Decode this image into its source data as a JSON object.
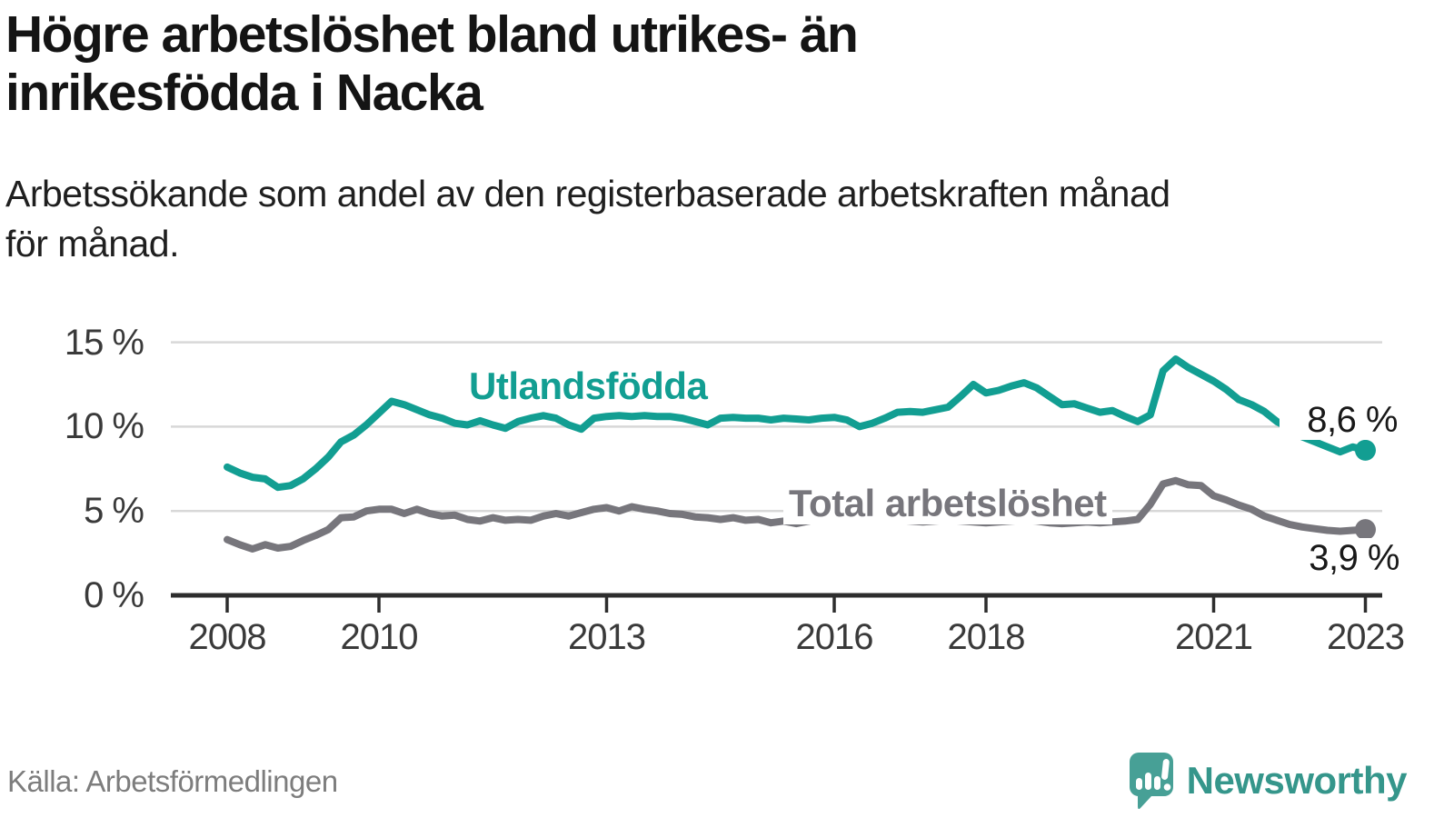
{
  "header": {
    "title_line1": "Högre arbetslöshet bland utrikes- än",
    "title_line2": "inrikesfödda i Nacka",
    "subtitle_line1": "Arbetssökande som andel av den registerbaserade arbetskraften månad",
    "subtitle_line2": "för månad."
  },
  "chart_data": {
    "type": "line",
    "title": "Högre arbetslöshet bland utrikes- än inrikesfödda i Nacka",
    "subtitle": "Arbetssökande som andel av den registerbaserade arbetskraften månad för månad.",
    "unit": "%",
    "grid": true,
    "legend_position": "inline-labels",
    "style": {
      "grid_color": "#D8D8D8",
      "axis_color": "#2D2D2D",
      "teal": "#129E92",
      "gray": "#77767C"
    },
    "y_axis": {
      "range": [
        0,
        15.5
      ],
      "ticks": [
        {
          "label": "15 %",
          "value": 15
        },
        {
          "label": "10 %",
          "value": 10
        },
        {
          "label": "5 %",
          "value": 5
        },
        {
          "label": "0 %",
          "value": 0
        }
      ]
    },
    "x_axis": {
      "range": [
        2008.0,
        2023.25
      ],
      "ticks": [
        {
          "label": "2008",
          "year": 2008
        },
        {
          "label": "2010",
          "year": 2010
        },
        {
          "label": "2013",
          "year": 2013
        },
        {
          "label": "2016",
          "year": 2016
        },
        {
          "label": "2018",
          "year": 2018
        },
        {
          "label": "2021",
          "year": 2021
        },
        {
          "label": "2023",
          "year": 2023
        }
      ]
    },
    "series": [
      {
        "id": "utlandsfodda",
        "name": "Utlandsfödda",
        "color": "#129E92",
        "end_label": "8,6 %",
        "end_value": 8.6,
        "points": [
          [
            2008.0,
            7.6
          ],
          [
            2008.167,
            7.25
          ],
          [
            2008.333,
            7.0
          ],
          [
            2008.5,
            6.9
          ],
          [
            2008.667,
            6.4
          ],
          [
            2008.833,
            6.5
          ],
          [
            2009.0,
            6.9
          ],
          [
            2009.167,
            7.5
          ],
          [
            2009.333,
            8.2
          ],
          [
            2009.5,
            9.1
          ],
          [
            2009.667,
            9.5
          ],
          [
            2009.833,
            10.1
          ],
          [
            2010.0,
            10.8
          ],
          [
            2010.167,
            11.5
          ],
          [
            2010.333,
            11.3
          ],
          [
            2010.5,
            11.0
          ],
          [
            2010.667,
            10.7
          ],
          [
            2010.833,
            10.5
          ],
          [
            2011.0,
            10.2
          ],
          [
            2011.167,
            10.1
          ],
          [
            2011.333,
            10.35
          ],
          [
            2011.5,
            10.1
          ],
          [
            2011.667,
            9.9
          ],
          [
            2011.833,
            10.3
          ],
          [
            2012.0,
            10.5
          ],
          [
            2012.167,
            10.65
          ],
          [
            2012.333,
            10.5
          ],
          [
            2012.5,
            10.1
          ],
          [
            2012.667,
            9.85
          ],
          [
            2012.833,
            10.5
          ],
          [
            2013.0,
            10.6
          ],
          [
            2013.167,
            10.65
          ],
          [
            2013.333,
            10.6
          ],
          [
            2013.5,
            10.65
          ],
          [
            2013.667,
            10.6
          ],
          [
            2013.833,
            10.6
          ],
          [
            2014.0,
            10.5
          ],
          [
            2014.167,
            10.3
          ],
          [
            2014.333,
            10.1
          ],
          [
            2014.5,
            10.5
          ],
          [
            2014.667,
            10.55
          ],
          [
            2014.833,
            10.5
          ],
          [
            2015.0,
            10.5
          ],
          [
            2015.167,
            10.4
          ],
          [
            2015.333,
            10.5
          ],
          [
            2015.5,
            10.45
          ],
          [
            2015.667,
            10.4
          ],
          [
            2015.833,
            10.5
          ],
          [
            2016.0,
            10.55
          ],
          [
            2016.167,
            10.4
          ],
          [
            2016.333,
            10.0
          ],
          [
            2016.5,
            10.2
          ],
          [
            2016.667,
            10.5
          ],
          [
            2016.833,
            10.85
          ],
          [
            2017.0,
            10.9
          ],
          [
            2017.167,
            10.85
          ],
          [
            2017.333,
            11.0
          ],
          [
            2017.5,
            11.15
          ],
          [
            2017.667,
            11.8
          ],
          [
            2017.833,
            12.5
          ],
          [
            2018.0,
            12.0
          ],
          [
            2018.167,
            12.15
          ],
          [
            2018.333,
            12.4
          ],
          [
            2018.5,
            12.6
          ],
          [
            2018.667,
            12.3
          ],
          [
            2018.833,
            11.8
          ],
          [
            2019.0,
            11.3
          ],
          [
            2019.167,
            11.35
          ],
          [
            2019.333,
            11.1
          ],
          [
            2019.5,
            10.85
          ],
          [
            2019.667,
            10.95
          ],
          [
            2019.833,
            10.6
          ],
          [
            2020.0,
            10.3
          ],
          [
            2020.167,
            10.7
          ],
          [
            2020.333,
            13.3
          ],
          [
            2020.5,
            14.0
          ],
          [
            2020.667,
            13.5
          ],
          [
            2020.833,
            13.1
          ],
          [
            2021.0,
            12.7
          ],
          [
            2021.167,
            12.2
          ],
          [
            2021.333,
            11.6
          ],
          [
            2021.5,
            11.3
          ],
          [
            2021.667,
            10.9
          ],
          [
            2021.833,
            10.3
          ],
          [
            2022.0,
            9.9
          ],
          [
            2022.167,
            9.4
          ],
          [
            2022.333,
            9.1
          ],
          [
            2022.5,
            8.8
          ],
          [
            2022.667,
            8.5
          ],
          [
            2022.833,
            8.8
          ],
          [
            2023.0,
            8.6
          ]
        ]
      },
      {
        "id": "total",
        "name": "Total arbetslöshet",
        "color": "#77767C",
        "end_label": "3,9 %",
        "end_value": 3.9,
        "points": [
          [
            2008.0,
            3.3
          ],
          [
            2008.167,
            3.0
          ],
          [
            2008.333,
            2.75
          ],
          [
            2008.5,
            3.0
          ],
          [
            2008.667,
            2.8
          ],
          [
            2008.833,
            2.9
          ],
          [
            2009.0,
            3.25
          ],
          [
            2009.167,
            3.55
          ],
          [
            2009.333,
            3.9
          ],
          [
            2009.5,
            4.6
          ],
          [
            2009.667,
            4.65
          ],
          [
            2009.833,
            5.0
          ],
          [
            2010.0,
            5.1
          ],
          [
            2010.167,
            5.1
          ],
          [
            2010.333,
            4.85
          ],
          [
            2010.5,
            5.1
          ],
          [
            2010.667,
            4.85
          ],
          [
            2010.833,
            4.7
          ],
          [
            2011.0,
            4.75
          ],
          [
            2011.167,
            4.5
          ],
          [
            2011.333,
            4.4
          ],
          [
            2011.5,
            4.6
          ],
          [
            2011.667,
            4.45
          ],
          [
            2011.833,
            4.5
          ],
          [
            2012.0,
            4.45
          ],
          [
            2012.167,
            4.7
          ],
          [
            2012.333,
            4.85
          ],
          [
            2012.5,
            4.7
          ],
          [
            2012.667,
            4.9
          ],
          [
            2012.833,
            5.1
          ],
          [
            2013.0,
            5.2
          ],
          [
            2013.167,
            5.0
          ],
          [
            2013.333,
            5.25
          ],
          [
            2013.5,
            5.1
          ],
          [
            2013.667,
            5.0
          ],
          [
            2013.833,
            4.85
          ],
          [
            2014.0,
            4.8
          ],
          [
            2014.167,
            4.65
          ],
          [
            2014.333,
            4.6
          ],
          [
            2014.5,
            4.5
          ],
          [
            2014.667,
            4.6
          ],
          [
            2014.833,
            4.45
          ],
          [
            2015.0,
            4.5
          ],
          [
            2015.167,
            4.3
          ],
          [
            2015.333,
            4.4
          ],
          [
            2015.5,
            4.25
          ],
          [
            2015.667,
            4.4
          ],
          [
            2015.833,
            4.55
          ],
          [
            2016.0,
            4.8
          ],
          [
            2016.167,
            4.6
          ],
          [
            2016.333,
            4.5
          ],
          [
            2016.5,
            4.55
          ],
          [
            2016.667,
            4.5
          ],
          [
            2016.833,
            4.45
          ],
          [
            2017.0,
            4.4
          ],
          [
            2017.167,
            4.35
          ],
          [
            2017.333,
            4.4
          ],
          [
            2017.5,
            4.45
          ],
          [
            2017.667,
            4.4
          ],
          [
            2017.833,
            4.35
          ],
          [
            2018.0,
            4.3
          ],
          [
            2018.167,
            4.35
          ],
          [
            2018.333,
            4.4
          ],
          [
            2018.5,
            4.45
          ],
          [
            2018.667,
            4.4
          ],
          [
            2018.833,
            4.3
          ],
          [
            2019.0,
            4.25
          ],
          [
            2019.167,
            4.3
          ],
          [
            2019.333,
            4.35
          ],
          [
            2019.5,
            4.3
          ],
          [
            2019.667,
            4.35
          ],
          [
            2019.833,
            4.4
          ],
          [
            2020.0,
            4.5
          ],
          [
            2020.167,
            5.4
          ],
          [
            2020.333,
            6.6
          ],
          [
            2020.5,
            6.8
          ],
          [
            2020.667,
            6.55
          ],
          [
            2020.833,
            6.5
          ],
          [
            2021.0,
            5.9
          ],
          [
            2021.167,
            5.65
          ],
          [
            2021.333,
            5.35
          ],
          [
            2021.5,
            5.1
          ],
          [
            2021.667,
            4.7
          ],
          [
            2021.833,
            4.45
          ],
          [
            2022.0,
            4.2
          ],
          [
            2022.167,
            4.05
          ],
          [
            2022.333,
            3.95
          ],
          [
            2022.5,
            3.85
          ],
          [
            2022.667,
            3.8
          ],
          [
            2022.833,
            3.85
          ],
          [
            2023.0,
            3.9
          ]
        ]
      }
    ]
  },
  "footer": {
    "source": "Källa: Arbetsförmedlingen",
    "logo_text": "Newsworthy"
  }
}
